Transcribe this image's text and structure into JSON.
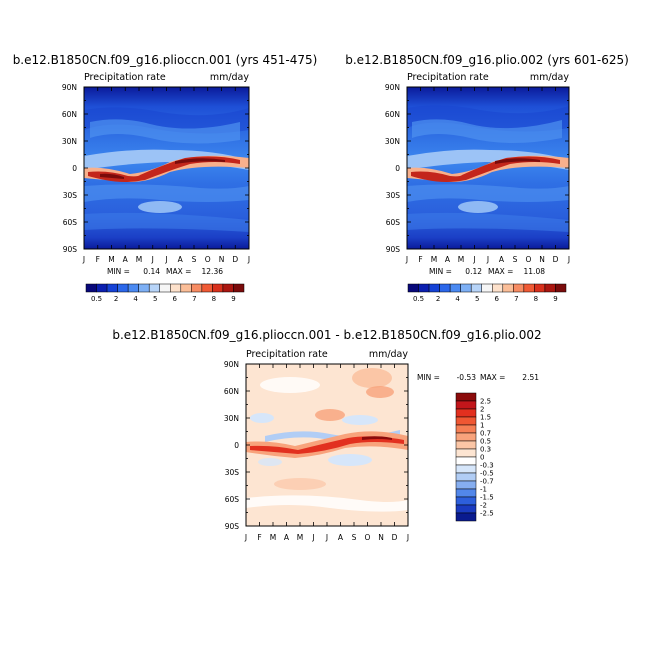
{
  "chart_data": [
    {
      "type": "heatmap",
      "title": "b.e12.B1850CN.f09_g16.plioccn.001 (yrs 451-475)",
      "left_label": "Precipitation rate",
      "right_label": "mm/day",
      "x_ticks": [
        "J",
        "F",
        "M",
        "A",
        "M",
        "J",
        "J",
        "A",
        "S",
        "O",
        "N",
        "D",
        "J"
      ],
      "y_ticks": [
        "90N",
        "60N",
        "30N",
        "0",
        "30S",
        "60S",
        "90S"
      ],
      "stats": {
        "min_label": "MIN =",
        "min": "0.14",
        "max_label": "MAX =",
        "max": "12.36"
      },
      "colorbar": {
        "orientation": "horizontal",
        "labels": [
          "0.5",
          "2",
          "4",
          "5",
          "6",
          "7",
          "8",
          "9"
        ],
        "colors": [
          "#08087a",
          "#0b1fb0",
          "#1542d6",
          "#2b67ea",
          "#4b8af2",
          "#7eb0f5",
          "#b7d4f8",
          "#f6f6f6",
          "#fde1cb",
          "#fbbe98",
          "#f78c63",
          "#f05a35",
          "#d8301c",
          "#ab1610",
          "#7a0b0b"
        ]
      }
    },
    {
      "type": "heatmap",
      "title": "b.e12.B1850CN.f09_g16.plio.002 (yrs 601-625)",
      "left_label": "Precipitation rate",
      "right_label": "mm/day",
      "x_ticks": [
        "J",
        "F",
        "M",
        "A",
        "M",
        "J",
        "J",
        "A",
        "S",
        "O",
        "N",
        "D",
        "J"
      ],
      "y_ticks": [
        "90N",
        "60N",
        "30N",
        "0",
        "30S",
        "60S",
        "90S"
      ],
      "stats": {
        "min_label": "MIN =",
        "min": "0.12",
        "max_label": "MAX =",
        "max": "11.08"
      },
      "colorbar": {
        "orientation": "horizontal",
        "labels": [
          "0.5",
          "2",
          "4",
          "5",
          "6",
          "7",
          "8",
          "9"
        ],
        "colors": [
          "#08087a",
          "#0b1fb0",
          "#1542d6",
          "#2b67ea",
          "#4b8af2",
          "#7eb0f5",
          "#b7d4f8",
          "#f6f6f6",
          "#fde1cb",
          "#fbbe98",
          "#f78c63",
          "#f05a35",
          "#d8301c",
          "#ab1610",
          "#7a0b0b"
        ]
      }
    },
    {
      "type": "heatmap",
      "title": "b.e12.B1850CN.f09_g16.plioccn.001 - b.e12.B1850CN.f09_g16.plio.002",
      "left_label": "Precipitation rate",
      "right_label": "mm/day",
      "x_ticks": [
        "J",
        "F",
        "M",
        "A",
        "M",
        "J",
        "J",
        "A",
        "S",
        "O",
        "N",
        "D",
        "J"
      ],
      "y_ticks": [
        "90N",
        "60N",
        "30N",
        "0",
        "30S",
        "60S",
        "90S"
      ],
      "stats": {
        "min_label": "MIN =",
        "min": "-0.53",
        "max_label": "MAX =",
        "max": "2.51"
      },
      "colorbar": {
        "orientation": "vertical",
        "labels": [
          "2.5",
          "2",
          "1.5",
          "1",
          "0.7",
          "0.5",
          "0.3",
          "0",
          "-0.3",
          "-0.5",
          "-0.7",
          "-1",
          "-1.5",
          "-2",
          "-2.5"
        ],
        "colors": [
          "#8b0b0b",
          "#c2161b",
          "#e2301f",
          "#ef5733",
          "#f57f55",
          "#f8a37c",
          "#fbc6a6",
          "#fde5d2",
          "#ffffff",
          "#d6e6fa",
          "#b1cdf5",
          "#86aef0",
          "#5287ea",
          "#2d5fdc",
          "#1a3bc0",
          "#0a1b8f"
        ]
      }
    }
  ]
}
